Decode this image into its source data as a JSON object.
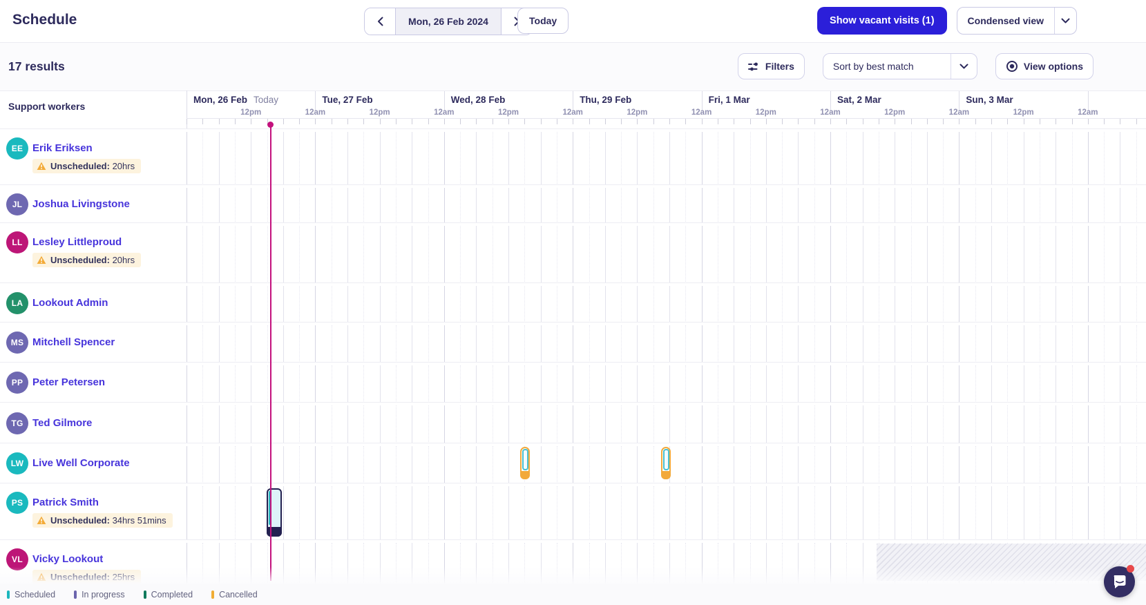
{
  "topbar": {
    "title": "Schedule",
    "date_display": "Mon, 26 Feb 2024",
    "today_label": "Today",
    "show_vacant_label": "Show vacant visits (1)",
    "condensed_view_label": "Condensed view"
  },
  "toolbar": {
    "results_text": "17 results",
    "filters_label": "Filters",
    "sort_label": "Sort by best match",
    "view_options_label": "View options"
  },
  "sidebar": {
    "heading": "Support workers",
    "unscheduled_prefix": "Unscheduled:",
    "workers": [
      {
        "initials": "EE",
        "name": "Erik Eriksen",
        "color": "#1ab9be",
        "unscheduled": "20hrs"
      },
      {
        "initials": "JL",
        "name": "Joshua Livingstone",
        "color": "#6e68b1",
        "unscheduled": null
      },
      {
        "initials": "LL",
        "name": "Lesley Littleproud",
        "color": "#bd1677",
        "unscheduled": "20hrs"
      },
      {
        "initials": "LA",
        "name": "Lookout Admin",
        "color": "#23916a",
        "unscheduled": null
      },
      {
        "initials": "MS",
        "name": "Mitchell Spencer",
        "color": "#6e68b1",
        "unscheduled": null
      },
      {
        "initials": "PP",
        "name": "Peter Petersen",
        "color": "#6e68b1",
        "unscheduled": null
      },
      {
        "initials": "TG",
        "name": "Ted Gilmore",
        "color": "#6e68b1",
        "unscheduled": null
      },
      {
        "initials": "LW",
        "name": "Live Well Corporate",
        "color": "#1ab9be",
        "unscheduled": null
      },
      {
        "initials": "PS",
        "name": "Patrick Smith",
        "color": "#1ab9be",
        "unscheduled": "34hrs 51mins"
      },
      {
        "initials": "VL",
        "name": "Vicky Lookout",
        "color": "#bd1677",
        "unscheduled": "25hrs"
      }
    ]
  },
  "calendar": {
    "days": [
      {
        "label": "Mon, 26 Feb",
        "badge": "Today"
      },
      {
        "label": "Tue, 27 Feb"
      },
      {
        "label": "Wed, 28 Feb"
      },
      {
        "label": "Thu, 29 Feb"
      },
      {
        "label": "Fri, 1 Mar"
      },
      {
        "label": "Sat, 2 Mar"
      },
      {
        "label": "Sun, 3 Mar"
      },
      {
        "label": ""
      }
    ],
    "time_labels": {
      "midnight": "12am",
      "noon": "12pm"
    },
    "now": {
      "day": 0,
      "hour": 15.7
    },
    "visits": [
      {
        "worker": "Patrick Smith",
        "row": 8,
        "day": 0,
        "start_hour": 14.9,
        "duration_hours": 2.8,
        "style": "scheduled-navy"
      },
      {
        "worker": "Live Well Corporate",
        "row": 7,
        "day": 2,
        "start_hour": 14.2,
        "duration_hours": 1.8,
        "style": "cancelled-outline"
      },
      {
        "worker": "Live Well Corporate",
        "row": 7,
        "day": 3,
        "start_hour": 16.5,
        "duration_hours": 1.8,
        "style": "cancelled-outline"
      }
    ],
    "unavailability": [
      {
        "worker": "Vicky Lookout",
        "row": 9,
        "day": 5,
        "start_hour": 8.6,
        "until_end": true
      }
    ]
  },
  "legend": {
    "items": [
      {
        "label": "Scheduled",
        "color": "#1cb6bd"
      },
      {
        "label": "In progress",
        "color": "#6b64ad"
      },
      {
        "label": "Completed",
        "color": "#107a5c"
      },
      {
        "label": "Cancelled",
        "color": "#f0ad35"
      }
    ]
  },
  "colors": {
    "primary": "#2b1fd9",
    "now_line": "#c3117d",
    "link": "#4734db"
  }
}
